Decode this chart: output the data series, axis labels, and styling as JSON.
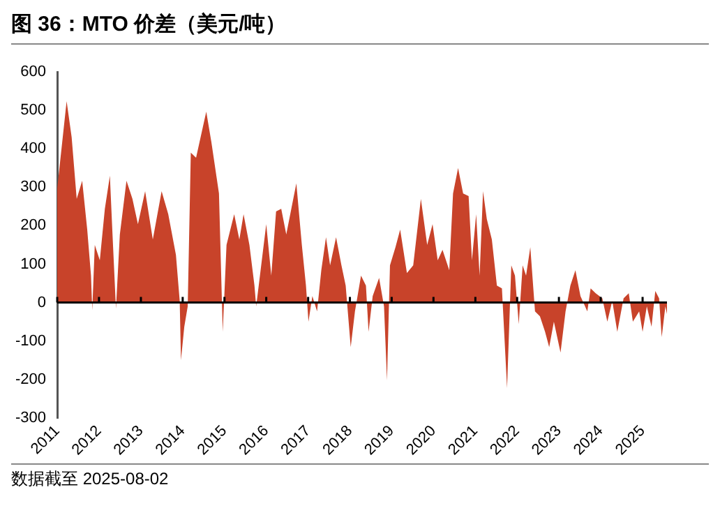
{
  "chart_data": {
    "type": "area",
    "title": "图 36：MTO 价差（美元/吨）",
    "x": [
      "2011-01-01",
      "2011-03-24",
      "2011-05-07",
      "2011-06-20",
      "2011-08-07",
      "2011-09-20",
      "2011-10-23",
      "2011-11-03",
      "2011-11-25",
      "2012-01-08",
      "2012-02-21",
      "2012-04-05",
      "2012-04-26",
      "2012-05-28",
      "2012-07-01",
      "2012-08-28",
      "2012-10-19",
      "2012-12-06",
      "2013-02-07",
      "2013-04-15",
      "2013-07-01",
      "2013-08-28",
      "2013-11-03",
      "2013-12-06",
      "2013-12-17",
      "2014-01-15",
      "2014-02-14",
      "2014-03-13",
      "2014-04-28",
      "2014-07-26",
      "2014-09-09",
      "2014-11-14",
      "2014-12-17",
      "2015-01-19",
      "2015-03-27",
      "2015-05-11",
      "2015-06-17",
      "2015-08-07",
      "2015-09-20",
      "2015-10-05",
      "2015-11-07",
      "2016-01-01",
      "2016-02-14",
      "2016-03-27",
      "2016-05-11",
      "2016-06-24",
      "2016-08-07",
      "2016-09-20",
      "2016-11-07",
      "2016-12-13",
      "2017-01-04",
      "2017-02-07",
      "2017-03-20",
      "2017-04-26",
      "2017-06-06",
      "2017-07-12",
      "2017-09-02",
      "2017-10-19",
      "2017-11-25",
      "2018-01-08",
      "2018-02-14",
      "2018-04-08",
      "2018-05-21",
      "2018-06-13",
      "2018-07-19",
      "2018-09-13",
      "2018-10-26",
      "2018-11-21",
      "2018-12-17",
      "2019-02-03",
      "2019-03-16",
      "2019-05-14",
      "2019-07-08",
      "2019-09-13",
      "2019-11-07",
      "2019-12-24",
      "2020-02-07",
      "2020-03-20",
      "2020-05-18",
      "2020-06-20",
      "2020-08-03",
      "2020-09-16",
      "2020-11-03",
      "2020-12-02",
      "2021-01-08",
      "2021-02-07",
      "2021-03-09",
      "2021-04-11",
      "2021-05-25",
      "2021-07-08",
      "2021-08-21",
      "2021-10-05",
      "2021-11-11",
      "2021-12-13",
      "2022-01-15",
      "2022-02-18",
      "2022-03-20",
      "2022-04-26",
      "2022-06-06",
      "2022-07-19",
      "2022-09-02",
      "2022-10-08",
      "2022-11-18",
      "2023-01-15",
      "2023-02-28",
      "2023-04-11",
      "2023-05-25",
      "2023-07-08",
      "2023-09-06",
      "2023-10-05",
      "2023-11-18",
      "2024-01-15",
      "2024-02-28",
      "2024-04-11",
      "2024-05-25",
      "2024-07-19",
      "2024-09-02",
      "2024-10-08",
      "2024-12-02",
      "2025-01-01",
      "2025-02-07",
      "2025-03-20",
      "2025-04-22",
      "2025-05-25",
      "2025-06-17",
      "2025-07-19",
      "2025-08-02"
    ],
    "series": [
      {
        "color": "#c8432a",
        "values": [
          297,
          524,
          430,
          270,
          317,
          190,
          70,
          -20,
          150,
          110,
          244,
          330,
          190,
          -16,
          177,
          317,
          270,
          204,
          290,
          164,
          290,
          230,
          124,
          4,
          -150,
          -63,
          -10,
          390,
          377,
          497,
          417,
          284,
          -76,
          150,
          230,
          164,
          230,
          150,
          44,
          -10,
          70,
          204,
          70,
          237,
          244,
          177,
          244,
          310,
          150,
          44,
          -50,
          17,
          -23,
          84,
          170,
          97,
          170,
          97,
          44,
          -116,
          -23,
          70,
          44,
          -76,
          17,
          64,
          -10,
          -203,
          97,
          144,
          190,
          77,
          97,
          270,
          150,
          204,
          110,
          137,
          84,
          284,
          350,
          284,
          277,
          110,
          230,
          70,
          290,
          217,
          164,
          44,
          37,
          -223,
          97,
          70,
          -56,
          97,
          70,
          144,
          -23,
          -36,
          -76,
          -116,
          -50,
          -130,
          -23,
          44,
          84,
          17,
          -23,
          37,
          24,
          11,
          -50,
          4,
          -76,
          11,
          24,
          -50,
          -23,
          -76,
          -10,
          -63,
          30,
          11,
          -90,
          -10,
          -30
        ]
      }
    ],
    "xlim": [
      "2011-01-01",
      "2025-08-02"
    ],
    "xticks": [
      {
        "value": "2011-01-01",
        "label": "2011"
      },
      {
        "value": "2012-01-01",
        "label": "2012"
      },
      {
        "value": "2013-01-01",
        "label": "2013"
      },
      {
        "value": "2014-01-01",
        "label": "2014"
      },
      {
        "value": "2015-01-01",
        "label": "2015"
      },
      {
        "value": "2016-01-01",
        "label": "2016"
      },
      {
        "value": "2017-01-01",
        "label": "2017"
      },
      {
        "value": "2018-01-01",
        "label": "2018"
      },
      {
        "value": "2019-01-01",
        "label": "2019"
      },
      {
        "value": "2020-01-01",
        "label": "2020"
      },
      {
        "value": "2021-01-01",
        "label": "2021"
      },
      {
        "value": "2022-01-01",
        "label": "2022"
      },
      {
        "value": "2023-01-01",
        "label": "2023"
      },
      {
        "value": "2024-01-01",
        "label": "2024"
      },
      {
        "value": "2025-01-01",
        "label": "2025"
      }
    ],
    "ylim": [
      -300,
      600
    ],
    "yticks": [
      -300,
      -200,
      -100,
      0,
      100,
      200,
      300,
      400,
      500,
      600
    ],
    "legend": false,
    "annotations": [
      "数据截至 2025-08-02"
    ]
  }
}
